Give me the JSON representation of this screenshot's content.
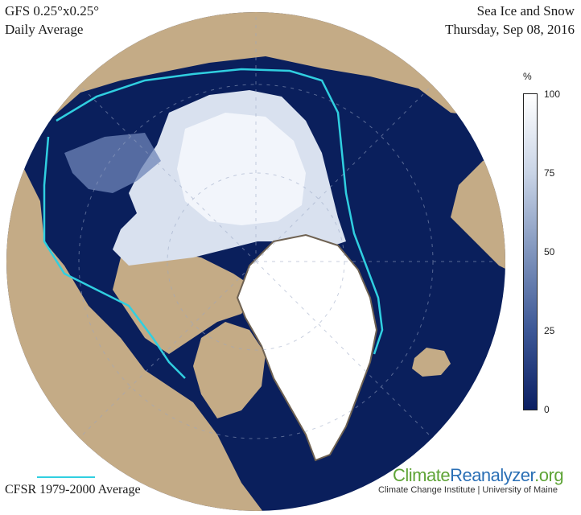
{
  "header": {
    "model": "GFS 0.25°x0.25°",
    "period": "Daily Average",
    "variable": "Sea Ice and Snow",
    "date": "Thursday, Sep 08, 2016"
  },
  "legend": {
    "line_label": "CFSR 1979-2000 Average",
    "line_color": "#30cfe0"
  },
  "colorbar": {
    "unit": "%",
    "ticks": [
      "100",
      "75",
      "50",
      "25",
      "0"
    ],
    "color_stops": [
      "#ffffff",
      "#c9d4e6",
      "#8095bd",
      "#3c5796",
      "#0b1f63"
    ]
  },
  "branding": {
    "name_part1": "Climate",
    "name_part2": "Reanalyzer",
    "name_part3": ".org",
    "subtitle": "Climate Change Institute | University of Maine"
  },
  "colors": {
    "ocean": "#0a1f5c",
    "land": "#c4ab86",
    "ice": "#eef2fa",
    "snow": "#ffffff",
    "climatology_line": "#30cfe0"
  }
}
